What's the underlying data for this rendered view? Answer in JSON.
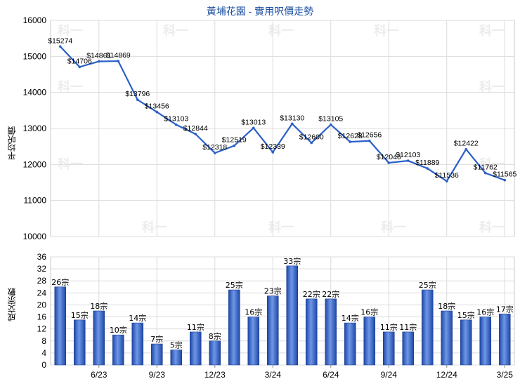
{
  "chart_data": [
    {
      "type": "line",
      "title": "黃埔花園 - 實用呎價走勢",
      "ylabel": "平均呎價",
      "ylim": [
        10000,
        16000
      ],
      "yticks": [
        "10000",
        "11000",
        "12000",
        "13000",
        "14000",
        "15000",
        "16000"
      ],
      "grid": true,
      "watermark": "科一",
      "series": [
        {
          "values": [
            15274,
            14706,
            14861,
            14869,
            13796,
            13456,
            13103,
            12844,
            12318,
            12519,
            13013,
            12339,
            13130,
            12600,
            13105,
            12628,
            12656,
            12046,
            12103,
            11889,
            11536,
            12422,
            11762,
            11565
          ],
          "labels": [
            "$15274",
            "$14706",
            "$14861",
            "$14869",
            "$13796",
            "$13456",
            "$13103",
            "$12844",
            "$12318",
            "$12519",
            "$13013",
            "$12339",
            "$13130",
            "$12600",
            "$13105",
            "$12628",
            "$12656",
            "$12046",
            "$12103",
            "$11889",
            "$11536",
            "$12422",
            "$11762",
            "$11565"
          ]
        }
      ],
      "color": "#2b5fc7"
    },
    {
      "type": "bar",
      "ylabel": "成交宗數",
      "ylim": [
        0,
        36
      ],
      "yticks": [
        "0",
        "4",
        "8",
        "12",
        "16",
        "20",
        "24",
        "28",
        "32",
        "36"
      ],
      "xticks": [
        "6/23",
        "9/23",
        "12/23",
        "3/24",
        "6/24",
        "9/24",
        "12/24",
        "3/25"
      ],
      "grid": true,
      "series": [
        {
          "values": [
            26,
            15,
            18,
            10,
            14,
            7,
            5,
            11,
            8,
            25,
            16,
            23,
            33,
            22,
            22,
            14,
            16,
            11,
            11,
            25,
            18,
            15,
            16,
            17
          ],
          "labels": [
            "26宗",
            "15宗",
            "18宗",
            "10宗",
            "14宗",
            "7宗",
            "5宗",
            "11宗",
            "8宗",
            "25宗",
            "16宗",
            "23宗",
            "33宗",
            "22宗",
            "22宗",
            "14宗",
            "16宗",
            "11宗",
            "11宗",
            "25宗",
            "18宗",
            "15宗",
            "16宗",
            "17宗"
          ]
        }
      ],
      "color": "#3a66c4"
    }
  ]
}
